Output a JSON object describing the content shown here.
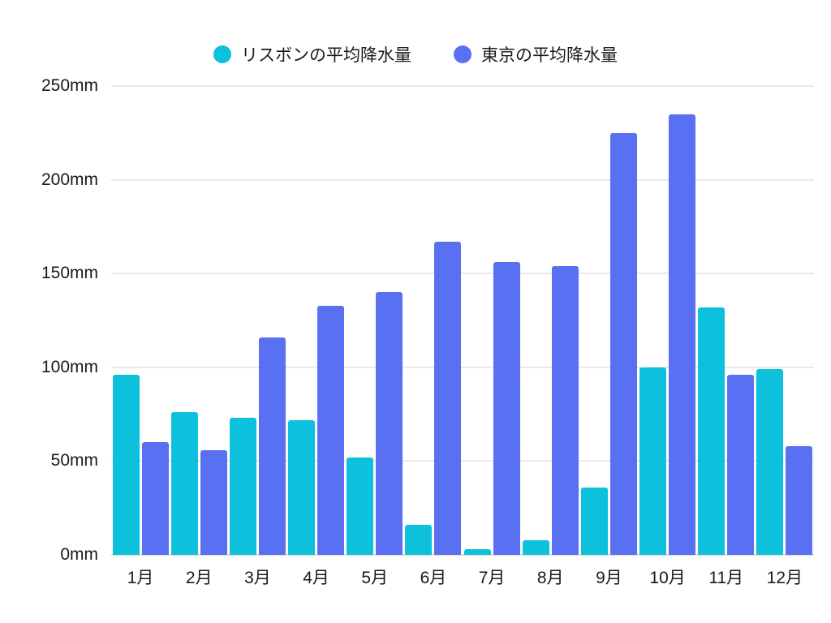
{
  "chart_data": {
    "type": "bar",
    "title": "",
    "xlabel": "",
    "ylabel": "",
    "y_unit": "mm",
    "categories": [
      "1月",
      "2月",
      "3月",
      "4月",
      "5月",
      "6月",
      "7月",
      "8月",
      "9月",
      "10月",
      "11月",
      "12月"
    ],
    "series": [
      {
        "name": "リスボンの平均降水量",
        "color": "#0DC1DC",
        "values": [
          96,
          76,
          73,
          72,
          52,
          16,
          3,
          8,
          36,
          100,
          132,
          99
        ]
      },
      {
        "name": "東京の平均降水量",
        "color": "#5A70F2",
        "values": [
          60,
          56,
          116,
          133,
          140,
          167,
          156,
          154,
          225,
          235,
          96,
          58
        ]
      }
    ],
    "ylim": [
      0,
      250
    ],
    "y_ticks": [
      0,
      50,
      100,
      150,
      200,
      250
    ],
    "y_tick_labels": [
      "0mm",
      "50mm",
      "100mm",
      "150mm",
      "200mm",
      "250mm"
    ],
    "grid": true,
    "legend_position": "top",
    "colors": {
      "background": "#FFFFFF",
      "grid": "#E9E9E9",
      "baseline": "#DCDCDC",
      "text": "#1A1A1A"
    }
  }
}
